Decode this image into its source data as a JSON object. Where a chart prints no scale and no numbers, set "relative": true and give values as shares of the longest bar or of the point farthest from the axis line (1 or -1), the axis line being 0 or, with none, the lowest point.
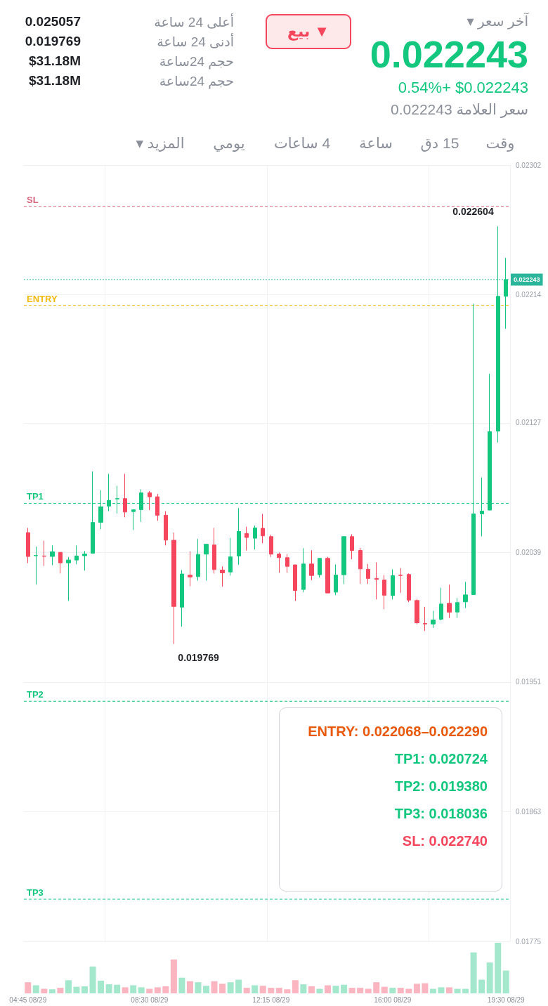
{
  "chart_data": [
    {
      "type": "other",
      "annotations": [
        "آخر سعر ▾",
        "0.022243",
        "0.54%+  $0.022243",
        "سعر العلامة 0.022243",
        "▼ بيع",
        "أعلى 24 ساعة",
        "أدنى 24 ساعة",
        "حجم 24ساعة",
        "حجم 24ساعة",
        "0.025057",
        "0.019769",
        "$31.18M",
        "$31.18M",
        "وقت",
        "15 دق",
        "ساعة",
        "4 ساعات",
        "يومي",
        "المزيد ▾"
      ]
    },
    {
      "type": "candlestick",
      "categories": [
        null,
        null,
        null,
        null,
        null,
        null,
        null,
        null,
        null,
        null,
        null,
        null,
        null,
        null,
        null,
        null,
        null,
        null,
        null,
        null,
        null,
        null,
        null,
        null,
        null,
        null,
        null,
        null,
        null,
        null,
        null,
        null,
        null,
        null,
        null,
        null,
        null,
        null,
        null,
        null,
        null,
        null,
        null,
        null,
        null,
        null,
        null,
        null,
        null,
        null,
        null,
        null,
        null,
        null,
        null,
        null,
        null,
        null,
        null,
        null
      ],
      "ohlc": [
        [
          0.020525,
          0.020557,
          0.020318,
          0.020363
        ],
        [
          0.020368,
          0.02043,
          0.020172,
          0.02037
        ],
        [
          0.020366,
          0.02047,
          0.020299,
          0.020364
        ],
        [
          0.020363,
          0.020438,
          0.020304,
          0.020395
        ],
        [
          0.020391,
          0.020392,
          0.020248,
          0.02032
        ],
        [
          0.02032,
          0.02036,
          0.020061,
          0.020339
        ],
        [
          0.020339,
          0.020438,
          0.02031,
          0.020366
        ],
        [
          0.020368,
          0.0204,
          0.020267,
          0.020379
        ],
        [
          0.020385,
          0.02094,
          0.020384,
          0.020594
        ],
        [
          0.020595,
          0.020813,
          0.020549,
          0.0207
        ],
        [
          0.020705,
          0.020924,
          0.02067,
          0.020744
        ],
        [
          0.020754,
          0.020843,
          0.020654,
          0.020756
        ],
        [
          0.020756,
          0.020924,
          0.020629,
          0.020665
        ],
        [
          0.020668,
          0.02068,
          0.020543,
          0.02068
        ],
        [
          0.020681,
          0.020819,
          0.020598,
          0.020795
        ],
        [
          0.020795,
          0.020808,
          0.020678,
          0.020768
        ],
        [
          0.020768,
          0.020787,
          0.020605,
          0.020643
        ],
        [
          0.020643,
          0.02067,
          0.020438,
          0.020474
        ],
        [
          0.020473,
          0.020525,
          0.019769,
          0.020024
        ],
        [
          0.020019,
          0.020271,
          0.019886,
          0.020244
        ],
        [
          0.020236,
          0.020398,
          0.020161,
          0.020224
        ],
        [
          0.020226,
          0.020482,
          0.020199,
          0.020377
        ],
        [
          0.020379,
          0.020446,
          0.020199,
          0.020446
        ],
        [
          0.020441,
          0.020557,
          0.020247,
          0.020274
        ],
        [
          0.020271,
          0.020295,
          0.020158,
          0.020252
        ],
        [
          0.020258,
          0.020489,
          0.020233,
          0.02036
        ],
        [
          0.020366,
          0.020692,
          0.020307,
          0.020533
        ],
        [
          0.020519,
          0.020565,
          0.020404,
          0.020492
        ],
        [
          0.020487,
          0.020573,
          0.020411,
          0.020557
        ],
        [
          0.020554,
          0.020652,
          0.020453,
          0.020503
        ],
        [
          0.020498,
          0.020511,
          0.02036,
          0.020379
        ],
        [
          0.020379,
          0.02039,
          0.020252,
          0.020355
        ],
        [
          0.020355,
          0.020379,
          0.020252,
          0.020296
        ],
        [
          0.020306,
          0.020307,
          0.020062,
          0.020132
        ],
        [
          0.020139,
          0.020419,
          0.02012,
          0.020312
        ],
        [
          0.020312,
          0.020406,
          0.020203,
          0.020234
        ],
        [
          0.020239,
          0.02035,
          0.02022,
          0.02035
        ],
        [
          0.02035,
          0.02036,
          0.020115,
          0.020115
        ],
        [
          0.020121,
          0.020309,
          0.0201,
          0.020237
        ],
        [
          0.020239,
          0.020498,
          0.020175,
          0.020498
        ],
        [
          0.020498,
          0.020514,
          0.020344,
          0.020404
        ],
        [
          0.020404,
          0.020422,
          0.020177,
          0.020279
        ],
        [
          0.020276,
          0.020312,
          0.020177,
          0.020214
        ],
        [
          0.020214,
          0.020323,
          0.020072,
          0.020207
        ],
        [
          0.020203,
          0.020237,
          0.020005,
          0.0201
        ],
        [
          0.020099,
          0.020276,
          0.020072,
          0.020233
        ],
        [
          0.020236,
          0.020284,
          0.020117,
          0.020234
        ],
        [
          0.020241,
          0.020248,
          0.020053,
          0.020067
        ],
        [
          0.020064,
          0.020075,
          0.019903,
          0.019913
        ],
        [
          0.019908,
          0.020021,
          0.019857,
          0.019905
        ],
        [
          0.019905,
          0.019994,
          0.019878,
          0.019932
        ],
        [
          0.019937,
          0.020151,
          0.019929,
          0.02004
        ],
        [
          0.020045,
          0.020172,
          0.019945,
          0.019985
        ],
        [
          0.019986,
          0.020081,
          0.019946,
          0.02005
        ],
        [
          0.020055,
          0.02019,
          0.020013,
          0.020102
        ],
        [
          0.020104,
          0.022079,
          0.020103,
          0.020652
        ],
        [
          0.020652,
          0.0209,
          0.0205,
          0.020671
        ],
        [
          0.020678,
          0.021603,
          0.020677,
          0.02121
        ],
        [
          0.021214,
          0.022604,
          0.021137,
          0.022129
        ],
        [
          0.022129,
          0.02239,
          0.021909,
          0.022243
        ]
      ],
      "ylim": [
        0.01775,
        0.02302
      ],
      "yticks": [
        0.01775,
        0.01863,
        0.01951,
        0.02039,
        0.02127,
        0.02214,
        0.02302
      ],
      "grid": true,
      "tick_labels": "y",
      "ref_lines": [
        {
          "axis": "y",
          "value": 0.022068,
          "label": "ENTRY",
          "color": "#f0b90b",
          "line_style": "dashed"
        },
        {
          "axis": "y",
          "value": 0.020724,
          "label": "TP1",
          "color": "#13c77f",
          "line_style": "dashed"
        },
        {
          "axis": "y",
          "value": 0.01938,
          "label": "TP2",
          "color": "#13c77f",
          "line_style": "dashed"
        },
        {
          "axis": "y",
          "value": 0.018036,
          "label": "TP3",
          "color": "#13c77f",
          "line_style": "dashed"
        },
        {
          "axis": "y",
          "value": 0.02274,
          "label": "SL",
          "color": "#d9667e",
          "line_style": "dashed"
        },
        {
          "axis": "y",
          "value": 0.022243,
          "label": "0.022243",
          "color": "#2bb59a",
          "line_style": "dotted"
        }
      ],
      "annotations": [
        "0.022604",
        "0.019769",
        "ENTRY: 0.022068–0.022290",
        "TP1: 0.020724",
        "TP2: 0.019380",
        "TP3: 0.018036",
        "SL: 0.022740"
      ]
    },
    {
      "type": "bar",
      "relative": true,
      "tick_labels": "x",
      "categories": [
        "04:45 08/29",
        null,
        null,
        null,
        null,
        null,
        null,
        null,
        null,
        null,
        null,
        null,
        null,
        null,
        null,
        "08:30 08/29",
        null,
        null,
        null,
        null,
        null,
        null,
        null,
        null,
        null,
        null,
        null,
        null,
        null,
        null,
        "12:15 08/29",
        null,
        null,
        null,
        null,
        null,
        null,
        null,
        null,
        null,
        null,
        null,
        null,
        null,
        null,
        "16:00 08/29",
        null,
        null,
        null,
        null,
        null,
        null,
        null,
        null,
        null,
        null,
        null,
        null,
        null,
        "19:30 08/29"
      ],
      "values": [
        0.22,
        0.16,
        0.09,
        0.08,
        0.11,
        0.26,
        0.13,
        0.14,
        0.53,
        0.25,
        0.18,
        0.17,
        0.12,
        0.16,
        0.12,
        0.09,
        0.12,
        0.14,
        0.67,
        0.31,
        0.24,
        0.22,
        0.15,
        0.24,
        0.19,
        0.22,
        0.27,
        0.11,
        0.16,
        0.15,
        0.11,
        0.11,
        0.08,
        0.26,
        0.18,
        0.14,
        0.09,
        0.16,
        0.15,
        0.17,
        0.11,
        0.11,
        0.09,
        0.22,
        0.13,
        0.11,
        0.11,
        0.09,
        0.19,
        0.2,
        0.09,
        0.12,
        0.12,
        0.09,
        0.09,
        0.81,
        0.27,
        0.61,
        1,
        0.45
      ],
      "colors": [
        "#fbb5c0",
        "#a3e8cc",
        "#fbb5c0",
        "#a3e8cc",
        "#fbb5c0",
        "#a3e8cc",
        "#a3e8cc",
        "#a3e8cc",
        "#a3e8cc",
        "#a3e8cc",
        "#a3e8cc",
        "#a3e8cc",
        "#fbb5c0",
        "#a3e8cc",
        "#a3e8cc",
        "#fbb5c0",
        "#fbb5c0",
        "#fbb5c0",
        "#fbb5c0",
        "#a3e8cc",
        "#fbb5c0",
        "#a3e8cc",
        "#a3e8cc",
        "#fbb5c0",
        "#fbb5c0",
        "#a3e8cc",
        "#a3e8cc",
        "#fbb5c0",
        "#a3e8cc",
        "#fbb5c0",
        "#fbb5c0",
        "#fbb5c0",
        "#fbb5c0",
        "#fbb5c0",
        "#a3e8cc",
        "#fbb5c0",
        "#a3e8cc",
        "#fbb5c0",
        "#a3e8cc",
        "#a3e8cc",
        "#fbb5c0",
        "#fbb5c0",
        "#fbb5c0",
        "#fbb5c0",
        "#fbb5c0",
        "#a3e8cc",
        "#fbb5c0",
        "#fbb5c0",
        "#fbb5c0",
        "#fbb5c0",
        "#a3e8cc",
        "#a3e8cc",
        "#fbb5c0",
        "#a3e8cc",
        "#a3e8cc",
        "#a3e8cc",
        "#a3e8cc",
        "#a3e8cc",
        "#a3e8cc",
        "#a3e8cc"
      ]
    }
  ]
}
